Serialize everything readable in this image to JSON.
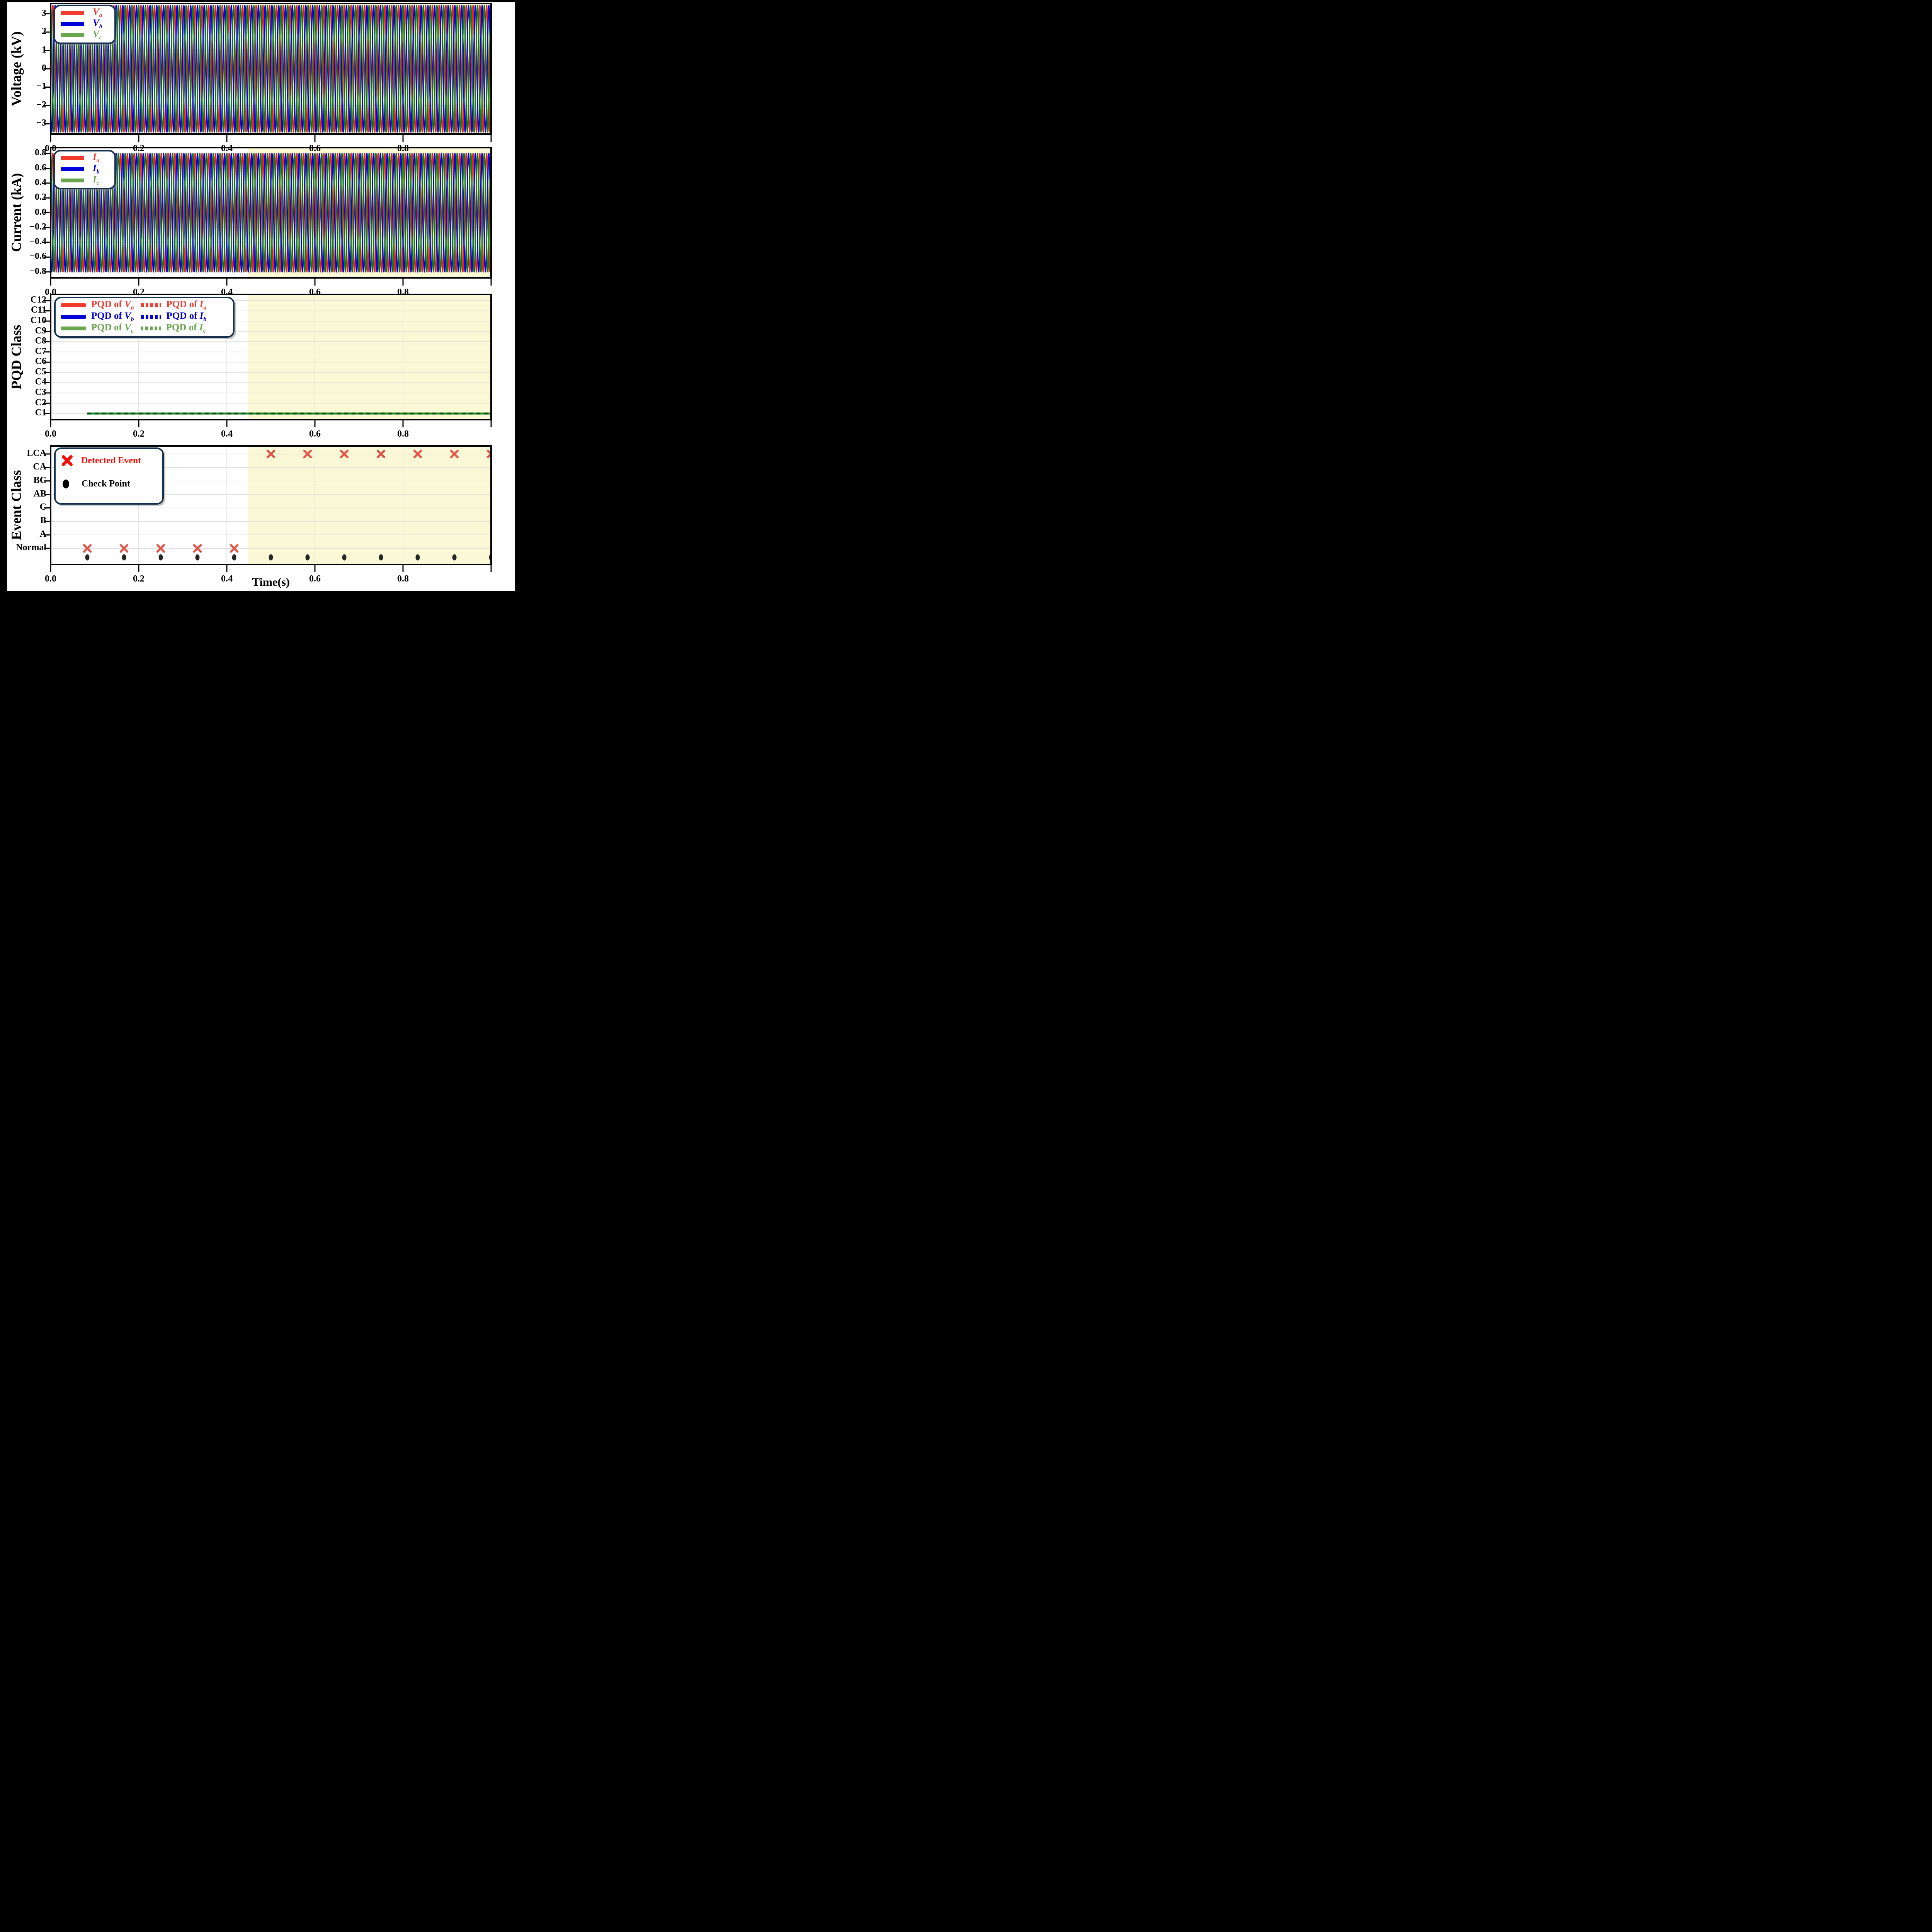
{
  "x_axis": {
    "label": "Time(s)",
    "tick_labels": [
      "0.0",
      "0.2",
      "0.4",
      "0.6",
      "0.8"
    ],
    "tick_values": [
      0.0,
      0.2,
      0.4,
      0.6,
      0.8
    ],
    "range": [
      0.0,
      1.0
    ]
  },
  "highlight_region": {
    "start": 0.448,
    "end": 1.0,
    "color": "#fbf9d5"
  },
  "colors": {
    "page_background": "#000000",
    "figure_background": "#ffffff",
    "grid": "#dcdcdc",
    "spine": "#000000",
    "legend_border": "#16314f",
    "phase_a_red": "#ee2019",
    "phase_b_blue": "#0404e8",
    "phase_c_green": "#0d7c11",
    "legend_red": "#f23b2e",
    "legend_blue": "#0000d6",
    "legend_green": "#6aa84f",
    "detected_x_red": "#e2574c",
    "legend_x_red": "#fb0d07",
    "checkpoint_black": "#262626"
  },
  "chart_data": [
    {
      "id": "voltage",
      "type": "line",
      "ylabel": "Voltage (kV)",
      "ylim": [
        -3.56,
        3.56
      ],
      "y_ticks": [
        {
          "v": 3,
          "label": "3"
        },
        {
          "v": 2,
          "label": "2"
        },
        {
          "v": 1,
          "label": "1"
        },
        {
          "v": 0,
          "label": "0"
        },
        {
          "v": -1,
          "label": "−1"
        },
        {
          "v": -2,
          "label": "−2"
        },
        {
          "v": -3,
          "label": "−3"
        }
      ],
      "wave": {
        "amplitude": 3.45,
        "cycles": 65
      },
      "series": [
        {
          "name": "Va",
          "phase_deg": -120,
          "color": "#ee2019"
        },
        {
          "name": "Vb",
          "phase_deg": -240,
          "color": "#0404e8"
        },
        {
          "name": "Vc",
          "phase_deg": 0,
          "color": "#0d7c11"
        }
      ],
      "legend": {
        "items": [
          {
            "main": "V",
            "sub": "a",
            "color": "#f23b2e"
          },
          {
            "main": "V",
            "sub": "b",
            "color": "#0000d6"
          },
          {
            "main": "V",
            "sub": "c",
            "color": "#6aa84f"
          }
        ]
      }
    },
    {
      "id": "current",
      "type": "line",
      "ylabel": "Current (kA)",
      "ylim": [
        -0.88,
        0.88
      ],
      "y_ticks": [
        {
          "v": 0.8,
          "label": "0.8"
        },
        {
          "v": 0.6,
          "label": "0.6"
        },
        {
          "v": 0.4,
          "label": "0.4"
        },
        {
          "v": 0.2,
          "label": "0.2"
        },
        {
          "v": 0.0,
          "label": "0.0"
        },
        {
          "v": -0.2,
          "label": "−0.2"
        },
        {
          "v": -0.4,
          "label": "−0.4"
        },
        {
          "v": -0.6,
          "label": "−0.6"
        },
        {
          "v": -0.8,
          "label": "−0.8"
        }
      ],
      "wave": {
        "amplitude": 0.8,
        "cycles": 65
      },
      "series": [
        {
          "name": "Ia",
          "phase_deg": -120,
          "color": "#ee2019"
        },
        {
          "name": "Ib",
          "phase_deg": -240,
          "color": "#0404e8"
        },
        {
          "name": "Ic",
          "phase_deg": 0,
          "color": "#0d7c11"
        }
      ],
      "legend": {
        "items": [
          {
            "main": "I",
            "sub": "a",
            "color": "#f23b2e"
          },
          {
            "main": "I",
            "sub": "b",
            "color": "#0000d6"
          },
          {
            "main": "I",
            "sub": "c",
            "color": "#6aa84f"
          }
        ]
      }
    },
    {
      "id": "pqd",
      "type": "flat-line",
      "ylabel": "PQD Class",
      "ylim": [
        0.4,
        12.6
      ],
      "y_ticks": [
        {
          "v": 12,
          "label": "C12"
        },
        {
          "v": 11,
          "label": "C11"
        },
        {
          "v": 10,
          "label": "C10"
        },
        {
          "v": 9,
          "label": "C9"
        },
        {
          "v": 8,
          "label": "C8"
        },
        {
          "v": 7,
          "label": "C7"
        },
        {
          "v": 6,
          "label": "C6"
        },
        {
          "v": 5,
          "label": "C5"
        },
        {
          "v": 4,
          "label": "C4"
        },
        {
          "v": 3,
          "label": "C3"
        },
        {
          "v": 2,
          "label": "C2"
        },
        {
          "v": 1,
          "label": "C1"
        }
      ],
      "line": {
        "y": 1,
        "x_start": 0.0833,
        "x_end": 1.0,
        "solid_color": "#128a18",
        "dash_color": "#0a4f10"
      },
      "legend": {
        "rows": [
          {
            "color": "#f23b2e",
            "solid": {
              "prefix": "PQD of ",
              "main": "V",
              "sub": "a"
            },
            "dotted": {
              "prefix": "PQD of ",
              "main": "I",
              "sub": "a"
            }
          },
          {
            "color": "#0000d6",
            "solid": {
              "prefix": "PQD of ",
              "main": "V",
              "sub": "b"
            },
            "dotted": {
              "prefix": "PQD of ",
              "main": "I",
              "sub": "b"
            }
          },
          {
            "color": "#6aa84f",
            "solid": {
              "prefix": "PQD of ",
              "main": "V",
              "sub": "c"
            },
            "dotted": {
              "prefix": "PQD of ",
              "main": "I",
              "sub": "c"
            }
          }
        ]
      }
    },
    {
      "id": "event",
      "type": "scatter",
      "ylabel": "Event Class",
      "ylim": [
        -1.2,
        7.6
      ],
      "y_ticks": [
        {
          "v": 7,
          "label": "LCA"
        },
        {
          "v": 6,
          "label": "CA"
        },
        {
          "v": 5,
          "label": "BC"
        },
        {
          "v": 4,
          "label": "AB"
        },
        {
          "v": 3,
          "label": "C"
        },
        {
          "v": 2,
          "label": "B"
        },
        {
          "v": 1,
          "label": "A"
        },
        {
          "v": 0,
          "label": "Normal"
        }
      ],
      "detected_events": {
        "color": "#e2574c",
        "normal_y": 0,
        "normal_times": [
          0.0833,
          0.1667,
          0.25,
          0.3333,
          0.4167
        ],
        "lca_y": 7,
        "lca_times": [
          0.5,
          0.5833,
          0.6667,
          0.75,
          0.8333,
          0.9167,
          1.0
        ]
      },
      "checkpoints": {
        "color": "#262626",
        "y": -0.67,
        "times": [
          0.0833,
          0.1667,
          0.25,
          0.3333,
          0.4167,
          0.5,
          0.5833,
          0.6667,
          0.75,
          0.8333,
          0.9167,
          1.0
        ]
      },
      "legend": {
        "items": [
          {
            "label": "Detected Event",
            "marker": "x",
            "color": "#fb0d07"
          },
          {
            "label": "Check Point",
            "marker": "dot",
            "color": "#000000"
          }
        ]
      }
    }
  ]
}
